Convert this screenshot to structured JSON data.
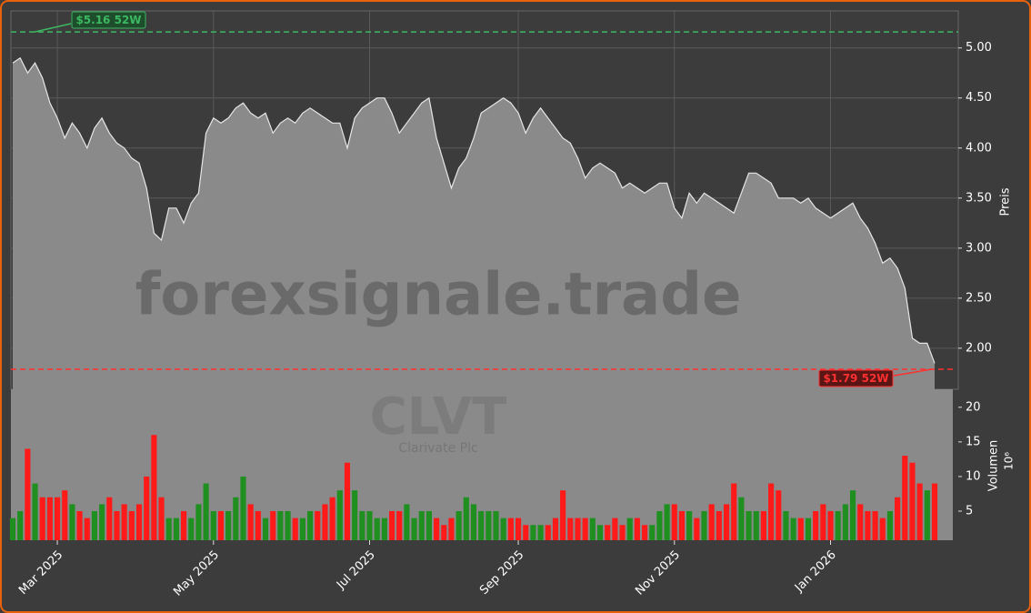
{
  "chart_data": {
    "type": "area",
    "symbol": "CLVT",
    "company": "Clarivate Plc",
    "watermark": "forexsignale.trade",
    "ylabel": "Preis",
    "color": "#8a8a8a",
    "line_color": "#e6e6e6",
    "categories": [
      null,
      null,
      null,
      null,
      null,
      null,
      "Mar 2025",
      null,
      null,
      null,
      null,
      null,
      null,
      null,
      null,
      null,
      null,
      null,
      null,
      null,
      null,
      null,
      null,
      null,
      null,
      null,
      null,
      "May 2025",
      null,
      null,
      null,
      null,
      null,
      null,
      null,
      null,
      null,
      null,
      null,
      null,
      null,
      null,
      null,
      null,
      null,
      null,
      null,
      null,
      "Jul 2025",
      null,
      null,
      null,
      null,
      null,
      null,
      null,
      null,
      null,
      null,
      null,
      null,
      null,
      null,
      null,
      null,
      null,
      null,
      null,
      "Sep 2025",
      null,
      null,
      null,
      null,
      null,
      null,
      null,
      null,
      null,
      null,
      null,
      null,
      null,
      null,
      null,
      null,
      null,
      null,
      null,
      null,
      "Nov 2025",
      null,
      null,
      null,
      null,
      null,
      null,
      null,
      null,
      null,
      null,
      null,
      null,
      null,
      null,
      null,
      null,
      null,
      null,
      null,
      null,
      "Jan 2026",
      null,
      null,
      null,
      null,
      null,
      null,
      null,
      null,
      null,
      null,
      null,
      null,
      null,
      null
    ],
    "values": [
      4.85,
      4.9,
      4.75,
      4.85,
      4.7,
      4.45,
      4.3,
      4.1,
      4.25,
      4.15,
      4.0,
      4.2,
      4.3,
      4.15,
      4.05,
      4.0,
      3.9,
      3.85,
      3.6,
      3.15,
      3.08,
      3.4,
      3.4,
      3.25,
      3.45,
      3.55,
      4.15,
      4.3,
      4.25,
      4.3,
      4.4,
      4.45,
      4.35,
      4.3,
      4.35,
      4.15,
      4.25,
      4.3,
      4.25,
      4.35,
      4.4,
      4.35,
      4.3,
      4.25,
      4.25,
      4.0,
      4.3,
      4.4,
      4.45,
      4.5,
      4.5,
      4.35,
      4.15,
      4.25,
      4.35,
      4.45,
      4.5,
      4.1,
      3.85,
      3.6,
      3.8,
      3.9,
      4.1,
      4.35,
      4.4,
      4.45,
      4.5,
      4.45,
      4.35,
      4.15,
      4.3,
      4.4,
      4.3,
      4.2,
      4.1,
      4.05,
      3.9,
      3.7,
      3.8,
      3.85,
      3.8,
      3.75,
      3.6,
      3.65,
      3.6,
      3.55,
      3.6,
      3.65,
      3.65,
      3.4,
      3.3,
      3.55,
      3.45,
      3.55,
      3.5,
      3.45,
      3.4,
      3.35,
      3.55,
      3.75,
      3.75,
      3.7,
      3.65,
      3.5,
      3.5,
      3.5,
      3.45,
      3.5,
      3.4,
      3.35,
      3.3,
      3.35,
      3.4,
      3.45,
      3.3,
      3.2,
      3.05,
      2.85,
      2.9,
      2.8,
      2.6,
      2.1,
      2.05,
      2.05,
      1.85
    ],
    "ylim": [
      1.59,
      5.37
    ],
    "yticks": [
      {
        "value": 2,
        "label": "2.00"
      },
      {
        "value": 2.5,
        "label": "2.50"
      },
      {
        "value": 3,
        "label": "3.00"
      },
      {
        "value": 3.5,
        "label": "3.50"
      },
      {
        "value": 4,
        "label": "4.00"
      },
      {
        "value": 4.5,
        "label": "4.50"
      },
      {
        "value": 5,
        "label": "5.00"
      }
    ],
    "grid": true,
    "high_52w": {
      "value": 5.16,
      "label": "$5.16 52W",
      "color": "#3cb862"
    },
    "low_52w": {
      "value": 1.79,
      "label": "$1.79 52W",
      "color": "#ff3030"
    },
    "volume": {
      "ylabel": "Volumen",
      "unit": "10⁶",
      "up_color": "#1f8f1f",
      "down_color": "#ff1a1a",
      "values": [
        4,
        5,
        14,
        9,
        7,
        7,
        7,
        8,
        6,
        5,
        4,
        5,
        6,
        7,
        5,
        6,
        5,
        6,
        10,
        16,
        7,
        4,
        4,
        5,
        4,
        6,
        9,
        5,
        5,
        5,
        7,
        10,
        6,
        5,
        4,
        5,
        5,
        5,
        4,
        4,
        5,
        5,
        6,
        7,
        8,
        12,
        8,
        5,
        5,
        4,
        4,
        5,
        5,
        6,
        4,
        5,
        5,
        4,
        3,
        4,
        5,
        7,
        6,
        5,
        5,
        5,
        4,
        4,
        4,
        3,
        3,
        3,
        3,
        4,
        8,
        4,
        4,
        4,
        4,
        3,
        3,
        4,
        3,
        4,
        4,
        3,
        3,
        5,
        6,
        6,
        5,
        5,
        4,
        5,
        6,
        5,
        6,
        9,
        7,
        5,
        5,
        5,
        9,
        8,
        5,
        4,
        4,
        4,
        5,
        6,
        5,
        5,
        6,
        8,
        6,
        5,
        5,
        4,
        5,
        7,
        13,
        12,
        9,
        8,
        9
      ],
      "ylim": [
        0.8,
        22.6
      ],
      "yticks": [
        5,
        10,
        15,
        20
      ]
    }
  }
}
